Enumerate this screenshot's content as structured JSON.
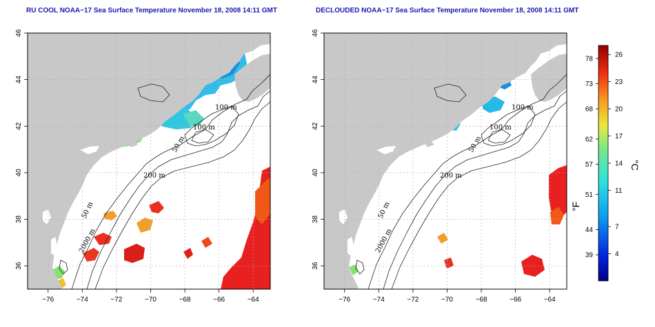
{
  "left_panel": {
    "title": "RU COOL NOAA−17 Sea Surface Temperature November 18, 2008 14:11 GMT"
  },
  "right_panel": {
    "title": "DECLOUDED NOAA−17 Sea Surface Temperature November 18, 2008 14:11 GMT"
  },
  "axes": {
    "lon_ticks": [
      "−76",
      "−74",
      "−72",
      "−70",
      "−68",
      "−66",
      "−64"
    ],
    "lat_ticks": [
      "46",
      "44",
      "42",
      "40",
      "38",
      "36"
    ],
    "lon_range": [
      -77.2,
      -63.0
    ],
    "lat_range": [
      35.0,
      46.0
    ]
  },
  "isobath_labels": {
    "l100a": "100 m",
    "l100b": "100 m",
    "l50a": "50 m",
    "l200": "200 m",
    "l50b": "50 m",
    "l2000": "2000 m"
  },
  "colorbar": {
    "f_ticks": [
      "78",
      "73",
      "68",
      "62",
      "57",
      "51",
      "44",
      "39"
    ],
    "c_ticks": [
      "26",
      "23",
      "20",
      "17",
      "14",
      "11",
      "7",
      "4"
    ],
    "f_unit": "°F",
    "c_unit": "°C",
    "range_c": [
      1,
      27
    ]
  },
  "colors": {
    "land": "#c8c8c8",
    "ocean": "#ffffff",
    "title": "#1818b0",
    "grid": "#b0b0b0"
  }
}
